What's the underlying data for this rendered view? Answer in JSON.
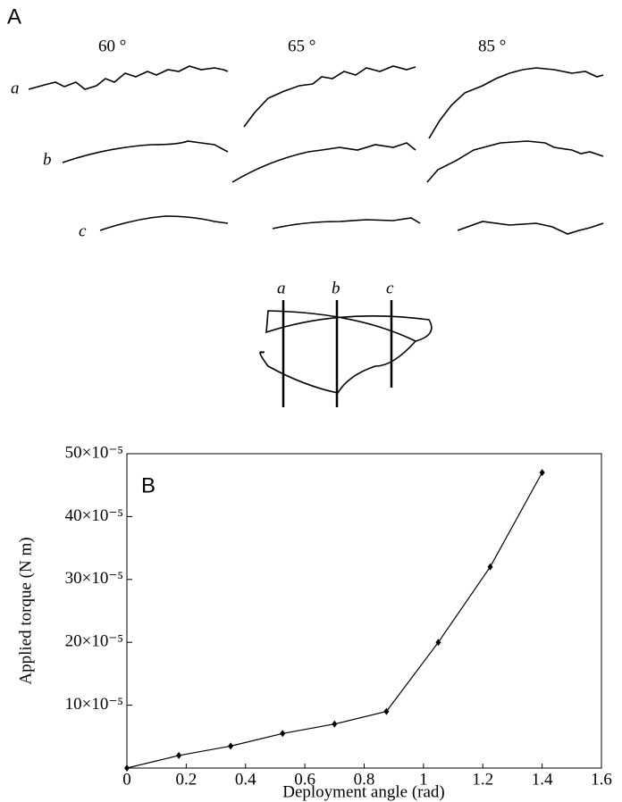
{
  "panel_a": {
    "label": "A",
    "angles": [
      "60 °",
      "65 °",
      "85 °"
    ],
    "row_labels": [
      "a",
      "b",
      "c"
    ],
    "section_labels": [
      "a",
      "b",
      "c"
    ]
  },
  "chart_data": {
    "type": "line",
    "panel_label": "B",
    "x_label": "Deployment angle (rad)",
    "y_label": "Applied torque (N m)",
    "x": [
      0,
      0.175,
      0.35,
      0.525,
      0.7,
      0.875,
      1.05,
      1.225,
      1.4
    ],
    "series": [
      {
        "color": "#000000",
        "values": [
          0,
          2e-05,
          3.5e-05,
          5.5e-05,
          7e-05,
          9e-05,
          0.0002,
          0.00032,
          0.00047
        ]
      }
    ],
    "xlim": [
      0,
      1.6
    ],
    "xticks": [
      0,
      0.2,
      0.4,
      0.6,
      0.8,
      1,
      1.2,
      1.4,
      1.6
    ],
    "ylim": [
      0,
      0.0005
    ],
    "yticks": [
      {
        "value": 0.0001,
        "label": "10×10⁻⁵"
      },
      {
        "value": 0.0002,
        "label": "20×10⁻⁵"
      },
      {
        "value": 0.0003,
        "label": "30×10⁻⁵"
      },
      {
        "value": 0.0004,
        "label": "40×10⁻⁵"
      },
      {
        "value": 0.0005,
        "label": "50×10⁻⁵"
      }
    ]
  }
}
